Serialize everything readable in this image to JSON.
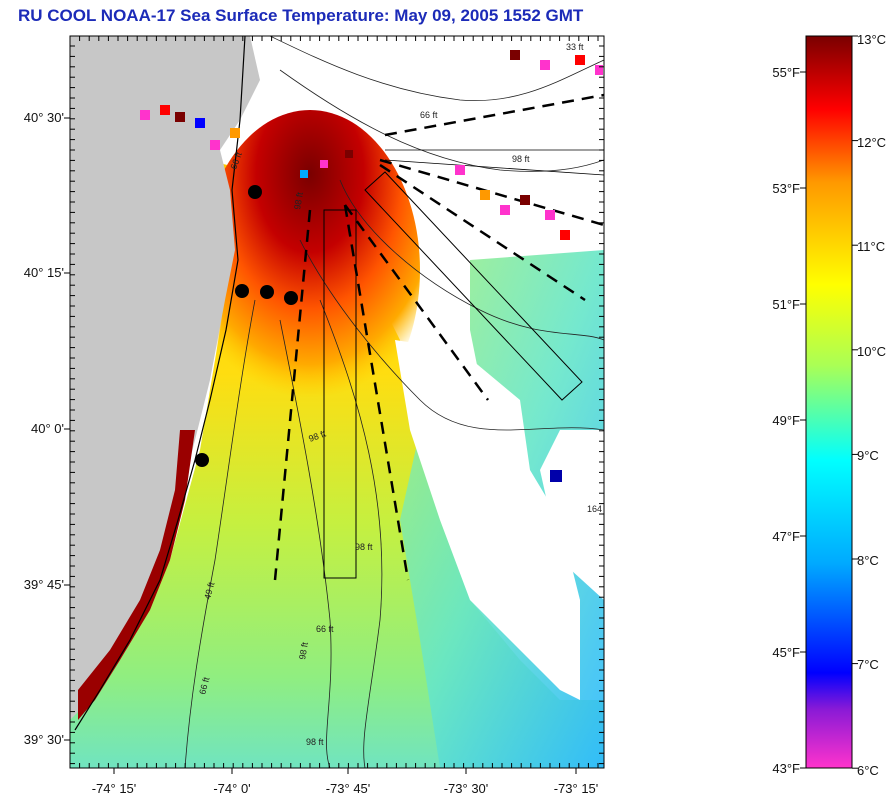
{
  "title": "RU COOL  NOAA-17  Sea Surface Temperature:  May 09, 2005 1552 GMT",
  "lat_labels": [
    "40° 30'",
    "40° 15'",
    "40° 0'",
    "39° 45'",
    "39° 30'"
  ],
  "lon_labels": [
    "-74° 15'",
    "-74° 0'",
    "-73° 45'",
    "-73° 30'",
    "-73° 15'"
  ],
  "contour_labels": [
    "66 ft",
    "98 ft",
    "98 ft",
    "98 ft",
    "98 ft",
    "66 ft",
    "66 ft",
    "66 ft",
    "98 ft",
    "98 ft",
    "164",
    "33 ft",
    "49 ft"
  ],
  "colorbar": {
    "celsius_labels": [
      "13°C",
      "12°C",
      "11°C",
      "10°C",
      "9°C",
      "8°C",
      "7°C",
      "6°C"
    ],
    "fahrenheit_labels": [
      "55°F",
      "53°F",
      "51°F",
      "49°F",
      "47°F",
      "45°F",
      "43°F"
    ],
    "colors": [
      "#ff33cc",
      "#0000ff",
      "#00aaff",
      "#00ffff",
      "#aaff55",
      "#ffff00",
      "#ff9900",
      "#ff0000",
      "#cc0000",
      "#7a0000"
    ]
  },
  "stations_count": 5
}
